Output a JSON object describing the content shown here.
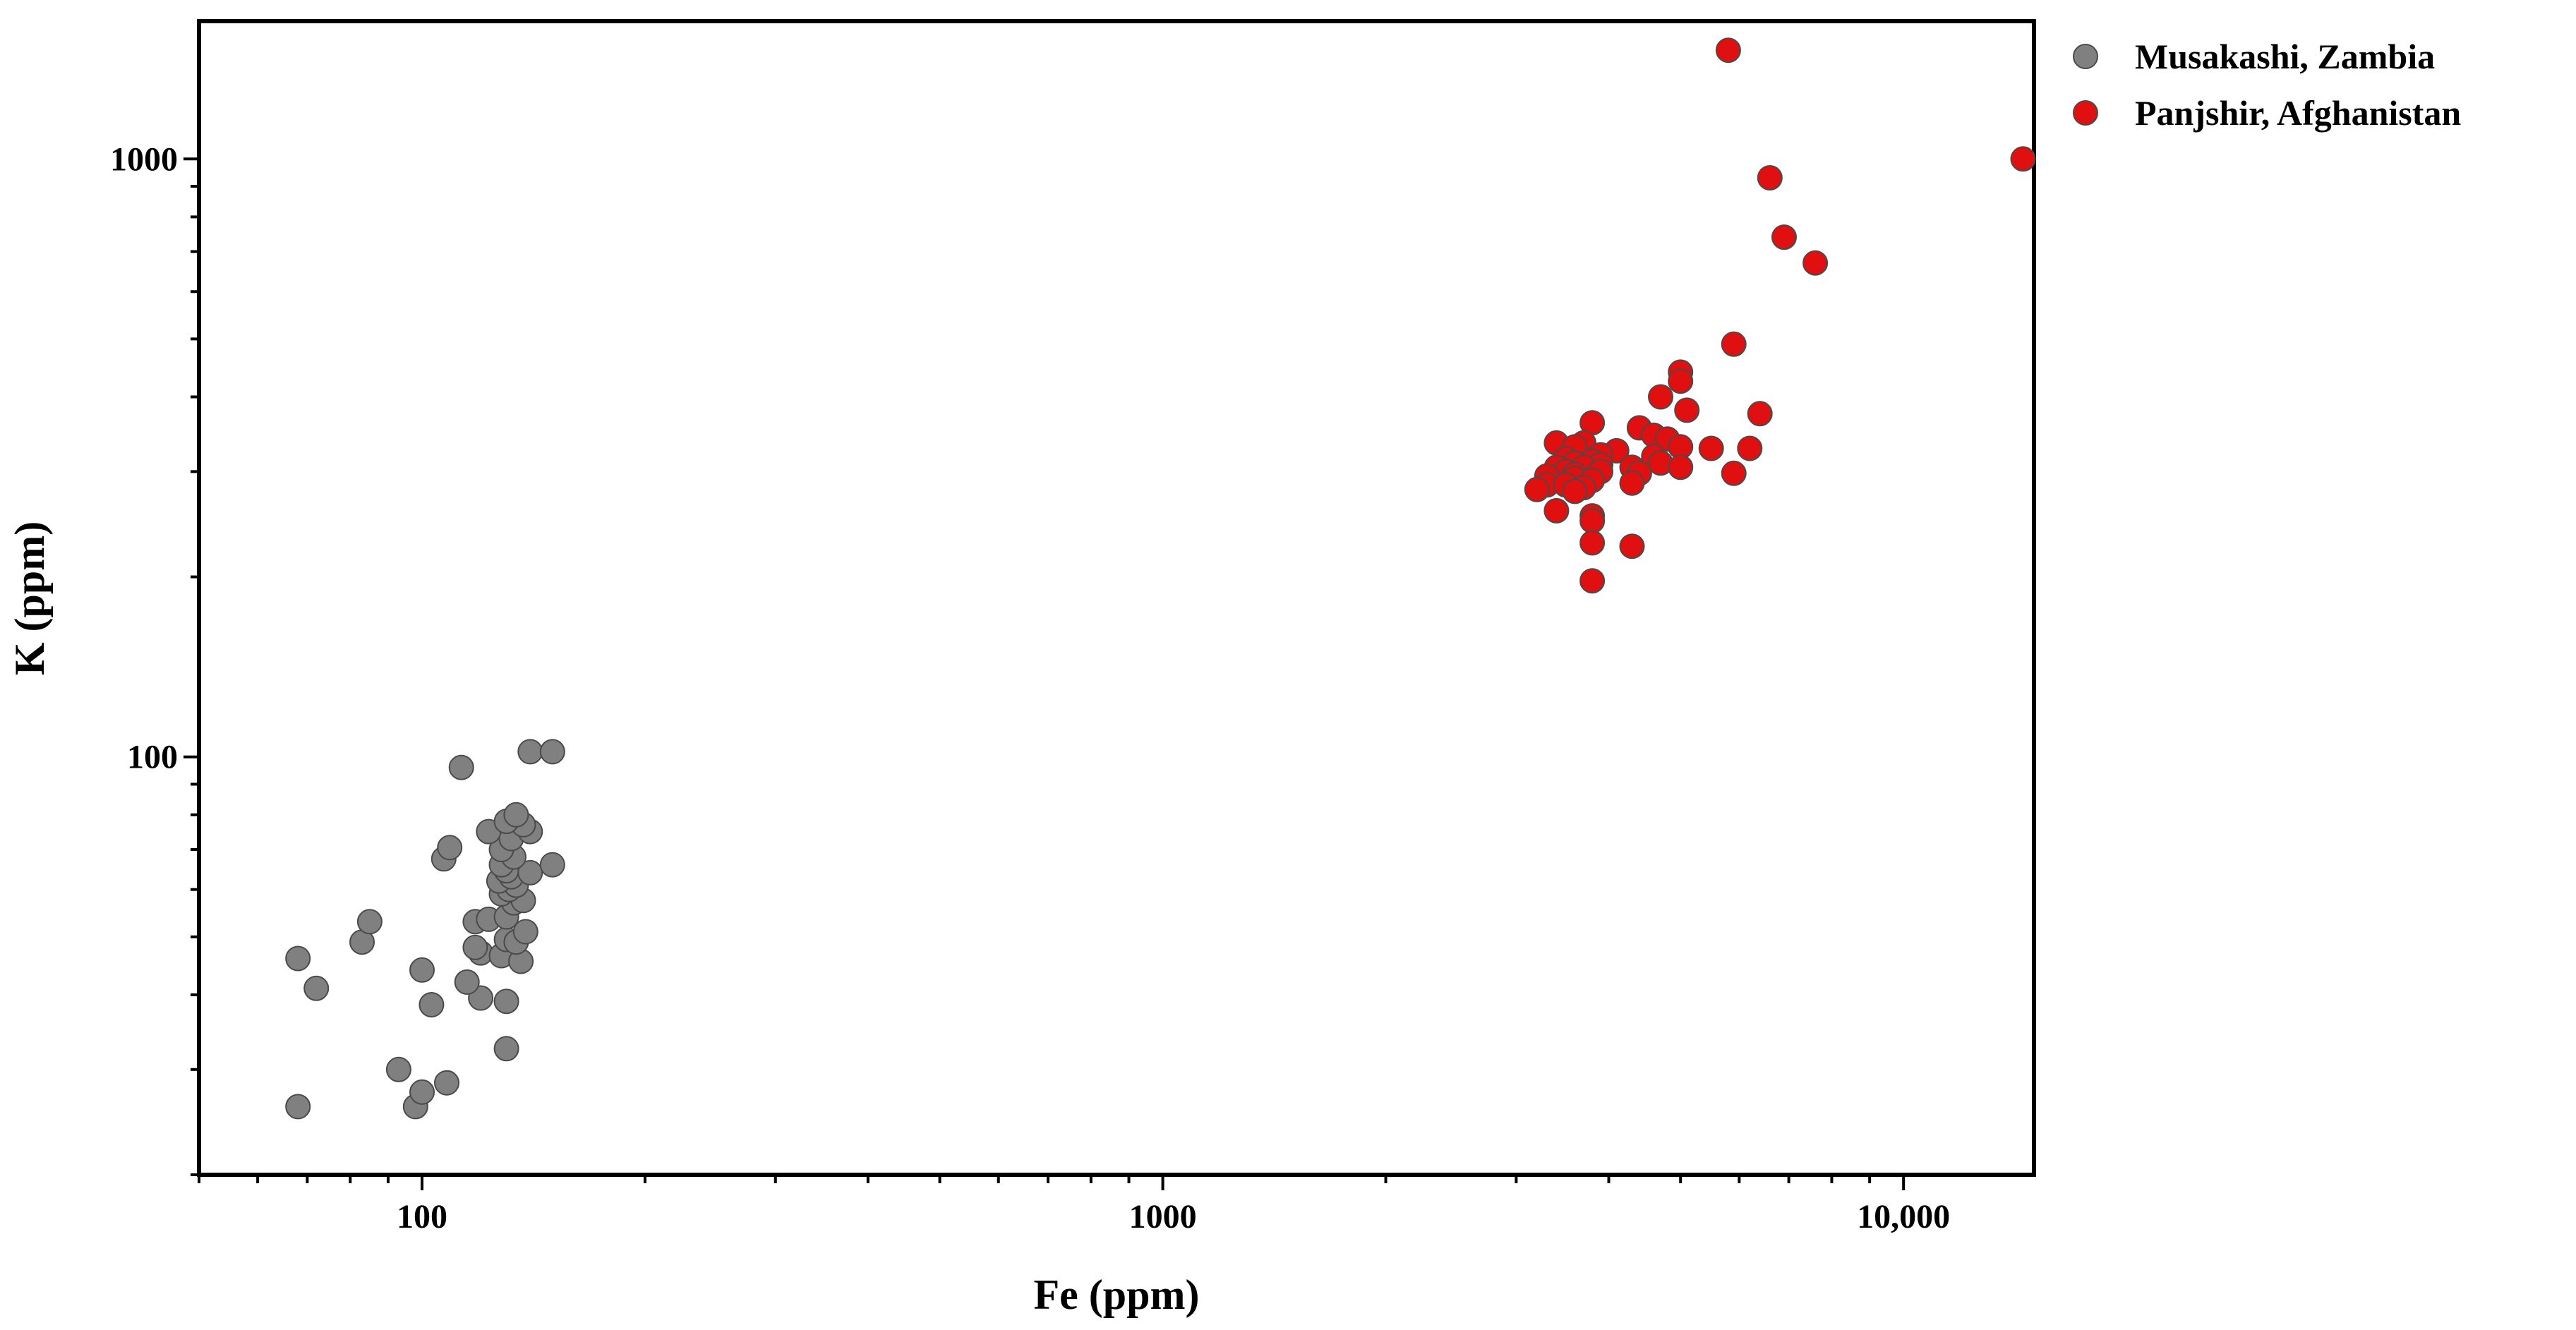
{
  "chart_data": {
    "type": "scatter",
    "title": "",
    "xlabel": "Fe (ppm)",
    "ylabel": "K (ppm)",
    "xscale": "log",
    "yscale": "log",
    "xlim": [
      50,
      15000
    ],
    "ylim": [
      20,
      1700
    ],
    "xticks": [
      {
        "value": 100,
        "label": "100"
      },
      {
        "value": 1000,
        "label": "1000"
      },
      {
        "value": 10000,
        "label": "10,000"
      }
    ],
    "yticks": [
      {
        "value": 100,
        "label": "100"
      },
      {
        "value": 1000,
        "label": "1000"
      }
    ],
    "grid": false,
    "legend_position": "outside-top-right",
    "series": [
      {
        "name": "Musakashi, Zambia",
        "color": "#808080",
        "points": [
          [
            68,
            26
          ],
          [
            98,
            26
          ],
          [
            100,
            27.5
          ],
          [
            108,
            28.5
          ],
          [
            93,
            30
          ],
          [
            130,
            32.5
          ],
          [
            130,
            39
          ],
          [
            120,
            39.5
          ],
          [
            103,
            38.5
          ],
          [
            72,
            41
          ],
          [
            115,
            42
          ],
          [
            100,
            44
          ],
          [
            68,
            46
          ],
          [
            120,
            47
          ],
          [
            118,
            48
          ],
          [
            128,
            46.5
          ],
          [
            136,
            45.5
          ],
          [
            83,
            49
          ],
          [
            130,
            49.5
          ],
          [
            134,
            49
          ],
          [
            138,
            51
          ],
          [
            85,
            53
          ],
          [
            118,
            53
          ],
          [
            123,
            53.5
          ],
          [
            130,
            54
          ],
          [
            133,
            57
          ],
          [
            137,
            57.5
          ],
          [
            128,
            59
          ],
          [
            131,
            60
          ],
          [
            134,
            61
          ],
          [
            127,
            62
          ],
          [
            132,
            63
          ],
          [
            130,
            64.5
          ],
          [
            140,
            64
          ],
          [
            128,
            66
          ],
          [
            150,
            66
          ],
          [
            107,
            67.5
          ],
          [
            133,
            68
          ],
          [
            128,
            70
          ],
          [
            109,
            70.5
          ],
          [
            132,
            73
          ],
          [
            123,
            75
          ],
          [
            140,
            75
          ],
          [
            137,
            77
          ],
          [
            130,
            78
          ],
          [
            134,
            80
          ],
          [
            113,
            96
          ],
          [
            140,
            102
          ],
          [
            150,
            102
          ]
        ]
      },
      {
        "name": "Panjshir, Afghanistan",
        "color": "#e01010",
        "points": [
          [
            5800,
            1520
          ],
          [
            14500,
            1000
          ],
          [
            6600,
            930
          ],
          [
            6900,
            740
          ],
          [
            7600,
            670
          ],
          [
            5900,
            490
          ],
          [
            5000,
            440
          ],
          [
            5000,
            425
          ],
          [
            4700,
            400
          ],
          [
            5100,
            380
          ],
          [
            6400,
            375
          ],
          [
            3800,
            362
          ],
          [
            4400,
            355
          ],
          [
            4600,
            345
          ],
          [
            4800,
            340
          ],
          [
            3400,
            335
          ],
          [
            3700,
            335
          ],
          [
            3600,
            330
          ],
          [
            5000,
            330
          ],
          [
            5500,
            328
          ],
          [
            4100,
            325
          ],
          [
            6200,
            328
          ],
          [
            3900,
            320
          ],
          [
            4600,
            318
          ],
          [
            3500,
            315
          ],
          [
            3800,
            312
          ],
          [
            3600,
            310
          ],
          [
            3900,
            308
          ],
          [
            4700,
            310
          ],
          [
            3700,
            305
          ],
          [
            3400,
            305
          ],
          [
            3500,
            300
          ],
          [
            3900,
            300
          ],
          [
            4300,
            305
          ],
          [
            5000,
            305
          ],
          [
            4400,
            298
          ],
          [
            3600,
            297
          ],
          [
            3300,
            295
          ],
          [
            3600,
            292
          ],
          [
            3800,
            290
          ],
          [
            3300,
            285
          ],
          [
            3500,
            285
          ],
          [
            4300,
            287
          ],
          [
            3700,
            282
          ],
          [
            3200,
            280
          ],
          [
            3600,
            278
          ],
          [
            5900,
            298
          ],
          [
            3400,
            258
          ],
          [
            3800,
            253
          ],
          [
            3800,
            248
          ],
          [
            3800,
            228
          ],
          [
            4300,
            225
          ],
          [
            3800,
            197
          ]
        ]
      }
    ]
  }
}
